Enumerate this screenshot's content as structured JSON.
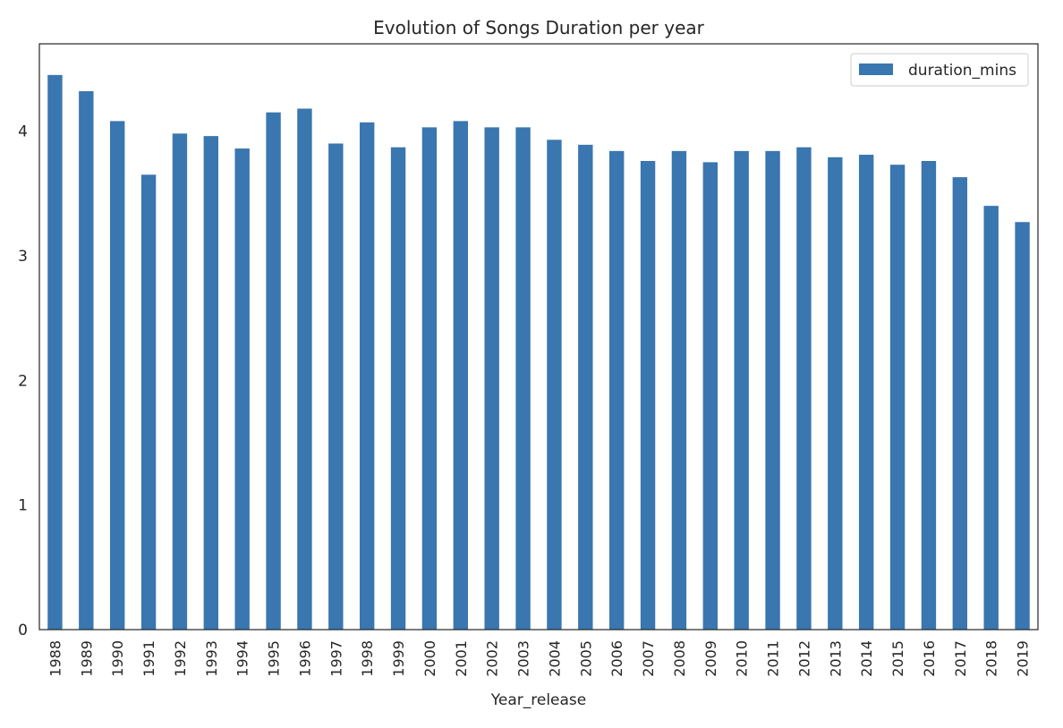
{
  "chart_data": {
    "type": "bar",
    "title": "Evolution of Songs Duration per year",
    "xlabel": "Year_release",
    "ylabel": "",
    "ylim": [
      0,
      4.7
    ],
    "yticks": [
      0,
      1,
      2,
      3,
      4
    ],
    "grid": false,
    "legend_position": "top-right",
    "categories": [
      "1988",
      "1989",
      "1990",
      "1991",
      "1992",
      "1993",
      "1994",
      "1995",
      "1996",
      "1997",
      "1998",
      "1999",
      "2000",
      "2001",
      "2002",
      "2003",
      "2004",
      "2005",
      "2006",
      "2007",
      "2008",
      "2009",
      "2010",
      "2011",
      "2012",
      "2013",
      "2014",
      "2015",
      "2016",
      "2017",
      "2018",
      "2019"
    ],
    "series": [
      {
        "name": "duration_mins",
        "color": "#3a76af",
        "values": [
          4.45,
          4.32,
          4.08,
          3.65,
          3.98,
          3.96,
          3.86,
          4.15,
          4.18,
          3.9,
          4.07,
          3.87,
          4.03,
          4.08,
          4.03,
          4.03,
          3.93,
          3.89,
          3.84,
          3.76,
          3.84,
          3.75,
          3.84,
          3.84,
          3.87,
          3.79,
          3.81,
          3.73,
          3.76,
          3.63,
          3.4,
          3.27
        ]
      }
    ]
  }
}
